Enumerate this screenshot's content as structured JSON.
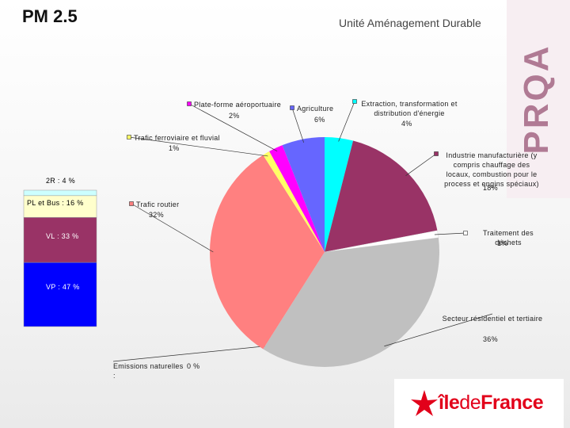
{
  "header": {
    "title": "PM 2.5",
    "subtitle": "Unité Aménagement Durable",
    "brand": "PRQA"
  },
  "chart_data": [
    {
      "type": "pie",
      "categories": [
        "Extraction, transformation et distribution d'énergie",
        "Industrie manufacturière (y compris chauffage des locaux, combustion pour le process et engins spéciaux)",
        "Traitement des déchets",
        "Secteur résidentiel et tertiaire",
        "Emissions naturelles :",
        "Trafic routier",
        "Trafic ferroviaire et fluvial",
        "Plate-forme aéroportuaire",
        "Agriculture"
      ],
      "values": [
        4,
        18,
        1,
        36,
        0,
        32,
        1,
        2,
        6
      ],
      "value_labels": [
        "4%",
        "18%",
        "1%",
        "36%",
        "0 %",
        "32%",
        "1%",
        "2%",
        "6%"
      ],
      "colors": [
        "#00FFFF",
        "#993366",
        "#FFFFFF",
        "#C0C0C0",
        "#808080",
        "#FF8080",
        "#FFFF66",
        "#FF00FF",
        "#6666FF"
      ]
    },
    {
      "type": "stacked_bar",
      "values": [
        4,
        16,
        33,
        47
      ],
      "value_labels": [
        "2R : 4 %",
        "PL et Bus : 16 %",
        "VL : 33 %",
        "VP : 47 %"
      ],
      "colors": [
        "#CCFFFF",
        "#FFFFCC",
        "#993366",
        "#0000FF"
      ]
    }
  ],
  "logo": {
    "parts": [
      "île",
      "de",
      "France"
    ]
  }
}
